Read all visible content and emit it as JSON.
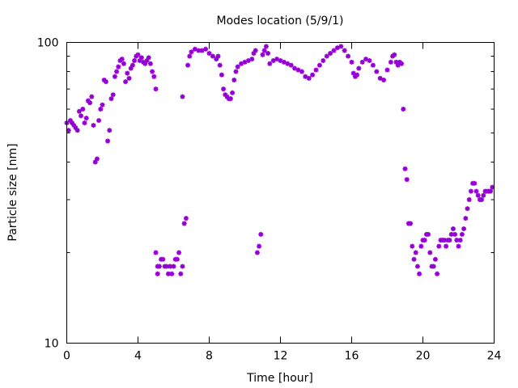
{
  "chart_data": {
    "type": "scatter",
    "title": "Modes location (5/9/1)",
    "xlabel": "Time [hour]",
    "ylabel": "Particle size [nm]",
    "xlim": [
      0,
      24
    ],
    "ylim": [
      10,
      100
    ],
    "yscale": "log",
    "grid": false,
    "legend": "none",
    "color": "#9400d3",
    "x_ticks": [
      0,
      4,
      8,
      12,
      16,
      20,
      24
    ],
    "x_tick_labels": [
      "0",
      "4",
      "8",
      "12",
      "16",
      "20",
      "24"
    ],
    "y_ticks": [
      10,
      100
    ],
    "y_tick_labels": [
      "10",
      "100"
    ],
    "y_minor_ticks": [
      20,
      30,
      40,
      50,
      60,
      70,
      80,
      90
    ],
    "series": [
      {
        "x": [
          0.0,
          0.1,
          0.2,
          0.3,
          0.4,
          0.5,
          0.6,
          0.7,
          0.8,
          0.9,
          1.0,
          1.1,
          1.2,
          1.3,
          1.4,
          1.5,
          1.6,
          1.7,
          1.8,
          1.9,
          2.0,
          2.1,
          2.2,
          2.3,
          2.4,
          2.5,
          2.6,
          2.7,
          2.8,
          2.9,
          3.0,
          3.1,
          3.2,
          3.3,
          3.4,
          3.5,
          3.6,
          3.7,
          3.8,
          3.9,
          4.0,
          4.1,
          4.2,
          4.3,
          4.4,
          4.5,
          4.6,
          4.7,
          4.8,
          4.9,
          5.0,
          5.0,
          5.1,
          5.1,
          5.2,
          5.3,
          5.4,
          5.5,
          5.6,
          5.7,
          5.8,
          5.9,
          6.0,
          6.1,
          6.2,
          6.3,
          6.4,
          6.5,
          6.5,
          6.6,
          6.7,
          6.8,
          6.9,
          7.0,
          7.2,
          7.4,
          7.6,
          7.8,
          8.0,
          8.2,
          8.4,
          8.5,
          8.6,
          8.7,
          8.8,
          8.9,
          9.0,
          9.1,
          9.2,
          9.3,
          9.4,
          9.5,
          9.6,
          9.8,
          10.0,
          10.2,
          10.4,
          10.5,
          10.6,
          10.7,
          10.8,
          10.9,
          11.0,
          11.1,
          11.2,
          11.3,
          11.4,
          11.6,
          11.8,
          12.0,
          12.2,
          12.4,
          12.6,
          12.8,
          13.0,
          13.2,
          13.4,
          13.6,
          13.8,
          14.0,
          14.2,
          14.4,
          14.6,
          14.8,
          15.0,
          15.2,
          15.4,
          15.6,
          15.8,
          16.0,
          16.1,
          16.2,
          16.3,
          16.4,
          16.6,
          16.8,
          17.0,
          17.2,
          17.4,
          17.6,
          17.8,
          18.0,
          18.2,
          18.3,
          18.4,
          18.5,
          18.6,
          18.7,
          18.8,
          18.9,
          19.0,
          19.1,
          19.2,
          19.3,
          19.4,
          19.5,
          19.6,
          19.7,
          19.8,
          19.9,
          20.0,
          20.1,
          20.2,
          20.3,
          20.4,
          20.5,
          20.6,
          20.7,
          20.8,
          20.9,
          21.0,
          21.1,
          21.2,
          21.3,
          21.4,
          21.5,
          21.6,
          21.7,
          21.8,
          21.9,
          22.0,
          22.1,
          22.2,
          22.3,
          22.4,
          22.5,
          22.6,
          22.7,
          22.8,
          22.9,
          23.0,
          23.1,
          23.2,
          23.3,
          23.4,
          23.5,
          23.6,
          23.7,
          23.8,
          23.9
        ],
        "y": [
          54,
          51,
          55,
          54,
          53,
          52,
          51,
          59,
          57,
          60,
          54,
          56,
          64,
          63,
          66,
          53,
          40,
          41,
          55,
          60,
          62,
          75,
          74,
          47,
          51,
          65,
          67,
          77,
          80,
          83,
          87,
          88,
          85,
          74,
          79,
          76,
          82,
          84,
          87,
          90,
          91,
          87,
          89,
          86,
          85,
          87,
          89,
          85,
          80,
          77,
          70,
          20,
          18,
          17,
          18,
          19,
          19,
          18,
          18,
          17,
          18,
          17,
          18,
          19,
          19,
          20,
          17,
          18,
          66,
          25,
          26,
          84,
          90,
          93,
          95,
          94,
          94,
          95,
          92,
          90,
          88,
          90,
          84,
          78,
          70,
          67,
          66,
          65,
          65,
          68,
          75,
          80,
          83,
          85,
          86,
          87,
          88,
          92,
          94,
          20,
          21,
          23,
          91,
          94,
          97,
          92,
          85,
          87,
          88,
          87,
          86,
          85,
          84,
          82,
          81,
          80,
          77,
          76,
          78,
          81,
          84,
          87,
          90,
          92,
          94,
          96,
          97,
          94,
          90,
          86,
          79,
          77,
          78,
          82,
          86,
          88,
          87,
          84,
          80,
          76,
          75,
          81,
          86,
          90,
          91,
          86,
          84,
          86,
          85,
          60,
          38,
          35,
          25,
          25,
          21,
          19,
          20,
          18,
          17,
          21,
          22,
          22,
          23,
          23,
          20,
          18,
          18,
          19,
          17,
          21,
          22,
          22,
          22,
          21,
          22,
          22,
          23,
          24,
          23,
          22,
          21,
          22,
          23,
          24,
          26,
          28,
          30,
          32,
          34,
          34,
          32,
          31,
          30,
          30,
          31,
          32,
          32,
          32,
          32,
          33
        ]
      }
    ]
  }
}
